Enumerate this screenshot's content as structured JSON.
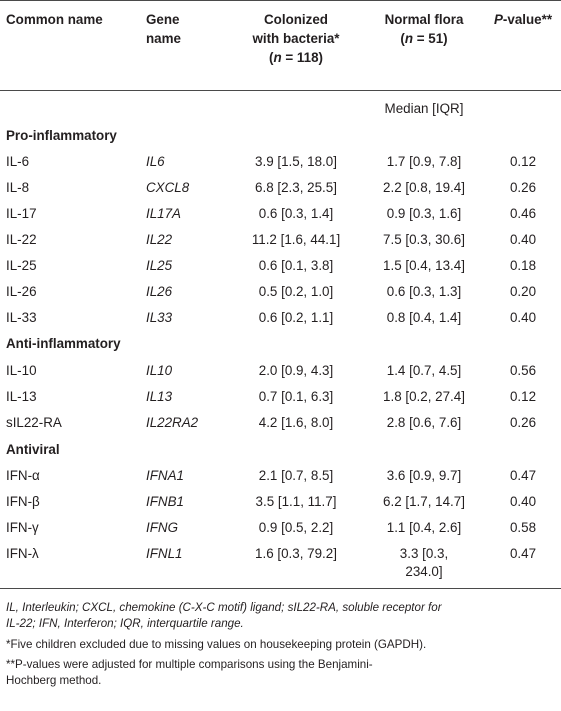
{
  "header": {
    "common_name": "Common name",
    "gene_name_1": "Gene",
    "gene_name_2": "name",
    "colonized_1": "Colonized",
    "colonized_2": "with bacteria*",
    "colonized_n_pre": "(",
    "colonized_n_var": "n",
    "colonized_n_post": " = 118)",
    "normal_1": "Normal flora",
    "normal_n_pre": "(",
    "normal_n_var": "n",
    "normal_n_post": " = 51)",
    "pvalue_var": "P",
    "pvalue_post": "-value**",
    "median_iqr": "Median [IQR]"
  },
  "sections": [
    {
      "title": "Pro-inflammatory",
      "rows": [
        {
          "common": "IL-6",
          "gene": "IL6",
          "colonized": "3.9 [1.5, 18.0]",
          "normal": "1.7 [0.9, 7.8]",
          "p": "0.12"
        },
        {
          "common": "IL-8",
          "gene": "CXCL8",
          "colonized": "6.8 [2.3, 25.5]",
          "normal": "2.2 [0.8, 19.4]",
          "p": "0.26"
        },
        {
          "common": "IL-17",
          "gene": "IL17A",
          "colonized": "0.6 [0.3, 1.4]",
          "normal": "0.9 [0.3, 1.6]",
          "p": "0.46"
        },
        {
          "common": "IL-22",
          "gene": "IL22",
          "colonized": "11.2 [1.6, 44.1]",
          "normal": "7.5 [0.3, 30.6]",
          "p": "0.40"
        },
        {
          "common": "IL-25",
          "gene": "IL25",
          "colonized": "0.6 [0.1, 3.8]",
          "normal": "1.5 [0.4, 13.4]",
          "p": "0.18"
        },
        {
          "common": "IL-26",
          "gene": "IL26",
          "colonized": "0.5 [0.2, 1.0]",
          "normal": "0.6 [0.3, 1.3]",
          "p": "0.20"
        },
        {
          "common": "IL-33",
          "gene": "IL33",
          "colonized": "0.6 [0.2, 1.1]",
          "normal": "0.8 [0.4, 1.4]",
          "p": "0.40"
        }
      ]
    },
    {
      "title": "Anti-inflammatory",
      "rows": [
        {
          "common": "IL-10",
          "gene": "IL10",
          "colonized": "2.0 [0.9, 4.3]",
          "normal": "1.4 [0.7, 4.5]",
          "p": "0.56"
        },
        {
          "common": "IL-13",
          "gene": "IL13",
          "colonized": "0.7 [0.1, 6.3]",
          "normal": "1.8 [0.2, 27.4]",
          "p": "0.12"
        },
        {
          "common": "sIL22-RA",
          "gene": "IL22RA2",
          "colonized": "4.2 [1.6, 8.0]",
          "normal": "2.8 [0.6, 7.6]",
          "p": "0.26"
        }
      ]
    },
    {
      "title": "Antiviral",
      "rows": [
        {
          "common": "IFN-α",
          "gene": "IFNA1",
          "colonized": "2.1 [0.7, 8.5]",
          "normal": "3.6 [0.9, 9.7]",
          "p": "0.47"
        },
        {
          "common": "IFN-β",
          "gene": "IFNB1",
          "colonized": "3.5 [1.1, 11.7]",
          "normal": "6.2 [1.7, 14.7]",
          "p": "0.40"
        },
        {
          "common": "IFN-γ",
          "gene": "IFNG",
          "colonized": "0.9 [0.5, 2.2]",
          "normal": "1.1 [0.4, 2.6]",
          "p": "0.58"
        },
        {
          "common": "IFN-λ",
          "gene": "IFNL1",
          "colonized": "1.6 [0.3, 79.2]",
          "normal": "3.3 [0.3,",
          "normal_line2": "234.0]",
          "p": "0.47"
        }
      ]
    }
  ],
  "footnotes": {
    "abbrev_line1": "IL, Interleukin; CXCL, chemokine (C-X-C motif) ligand; sIL22-RA, soluble receptor for",
    "abbrev_line2": "IL-22; IFN, Interferon; IQR, interquartile range.",
    "note1": "*Five children excluded due to missing values on housekeeping protein (GAPDH).",
    "note2_line1": "**P-values were adjusted for multiple comparisons using the Benjamini-",
    "note2_line2": "Hochberg method."
  }
}
